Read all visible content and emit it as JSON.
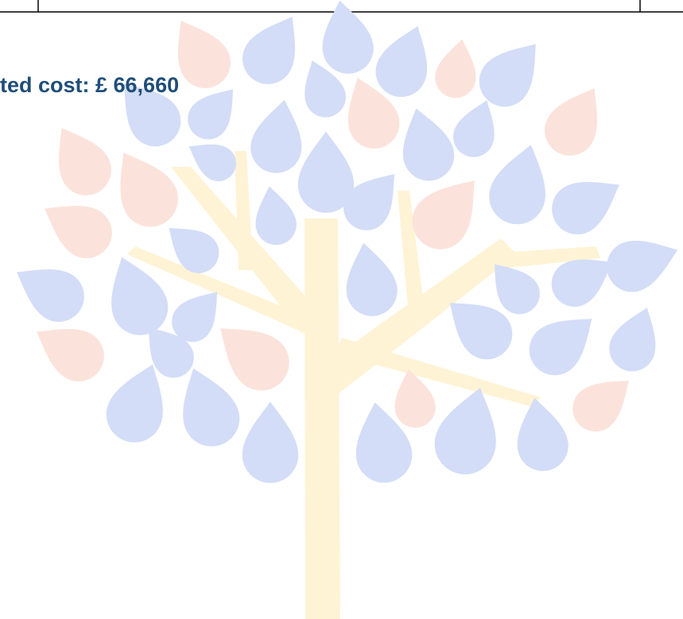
{
  "text": "ted cost: £ 66,660"
}
